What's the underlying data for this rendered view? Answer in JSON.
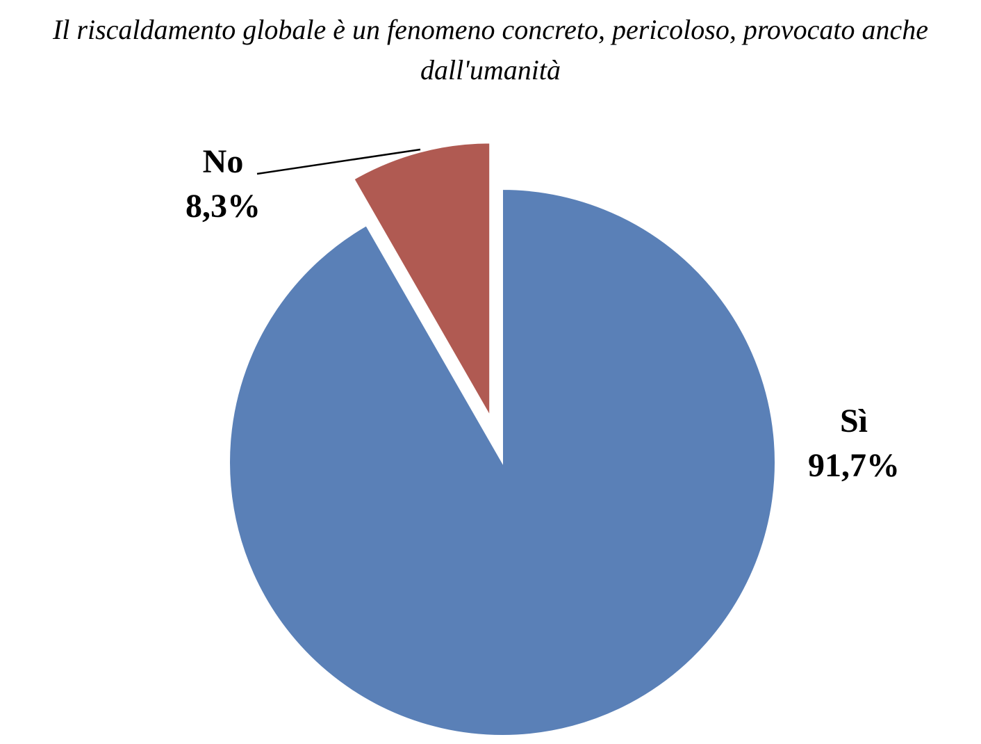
{
  "chart_data": {
    "type": "pie",
    "title": "Il riscaldamento globale è un fenomeno concreto, pericoloso, provocato anche dall'umanità",
    "categories": [
      "Sì",
      "No"
    ],
    "values": [
      91.7,
      8.3
    ],
    "value_labels": [
      "91,7%",
      "8,3%"
    ],
    "colors": [
      "#5a80b7",
      "#b05a52"
    ],
    "exploded": [
      false,
      true
    ]
  }
}
